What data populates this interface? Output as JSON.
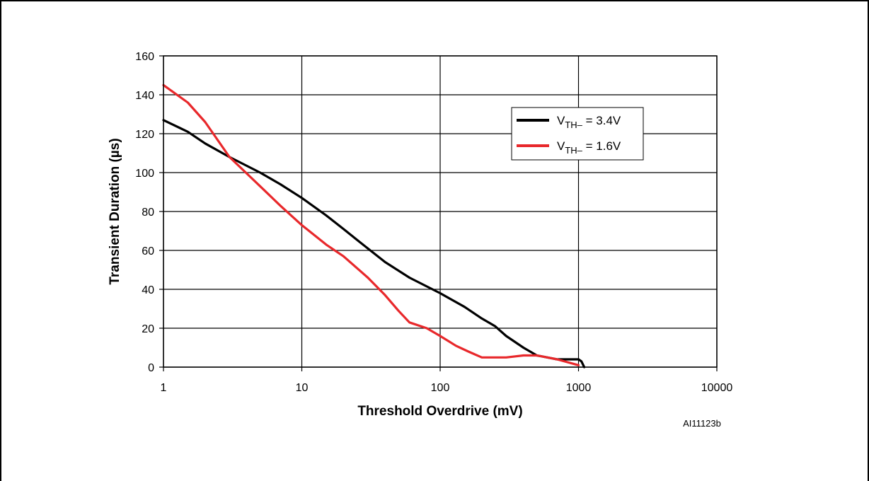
{
  "chart_data": {
    "type": "line",
    "title": "",
    "xlabel": "Threshold Overdrive (mV)",
    "ylabel": "Transient Duration (µs)",
    "xscale": "log",
    "xlim": [
      1,
      10000
    ],
    "ylim": [
      0,
      160
    ],
    "xticks": [
      1,
      10,
      100,
      1000,
      10000
    ],
    "xtick_labels": [
      "1",
      "10",
      "100",
      "1000",
      "10000"
    ],
    "yticks": [
      0,
      20,
      40,
      60,
      80,
      100,
      120,
      140,
      160
    ],
    "ytick_labels": [
      "0",
      "20",
      "40",
      "60",
      "80",
      "100",
      "120",
      "140",
      "160"
    ],
    "grid": true,
    "legend_position": "upper-right",
    "series": [
      {
        "name": "V_TH– = 3.4V",
        "legend_main": "V",
        "legend_sub": "TH–",
        "legend_rest": " = 3.4V",
        "color": "#000000",
        "x": [
          1,
          1.5,
          2,
          3,
          5,
          7,
          10,
          15,
          20,
          30,
          40,
          60,
          100,
          150,
          200,
          250,
          300,
          400,
          500,
          700,
          900,
          1000,
          1050,
          1100
        ],
        "y": [
          127,
          121,
          115,
          108,
          100,
          94,
          87,
          78,
          71,
          61,
          54,
          46,
          38,
          31,
          25,
          21,
          16,
          10,
          6,
          4,
          4,
          4,
          3,
          0
        ]
      },
      {
        "name": "V_TH– = 1.6V",
        "legend_main": "V",
        "legend_sub": "TH–",
        "legend_rest": " = 1.6V",
        "color": "#e8282b",
        "x": [
          1,
          1.5,
          2,
          3,
          5,
          7,
          10,
          15,
          20,
          30,
          40,
          50,
          60,
          80,
          100,
          130,
          160,
          200,
          250,
          300,
          400,
          500,
          700,
          1000
        ],
        "y": [
          145,
          136,
          126,
          108,
          93,
          83,
          73,
          63,
          57,
          46,
          37,
          29,
          23,
          20,
          16,
          11,
          8,
          5,
          5,
          5,
          6,
          6,
          4,
          1
        ]
      }
    ]
  },
  "figure_id": "AI11123b"
}
